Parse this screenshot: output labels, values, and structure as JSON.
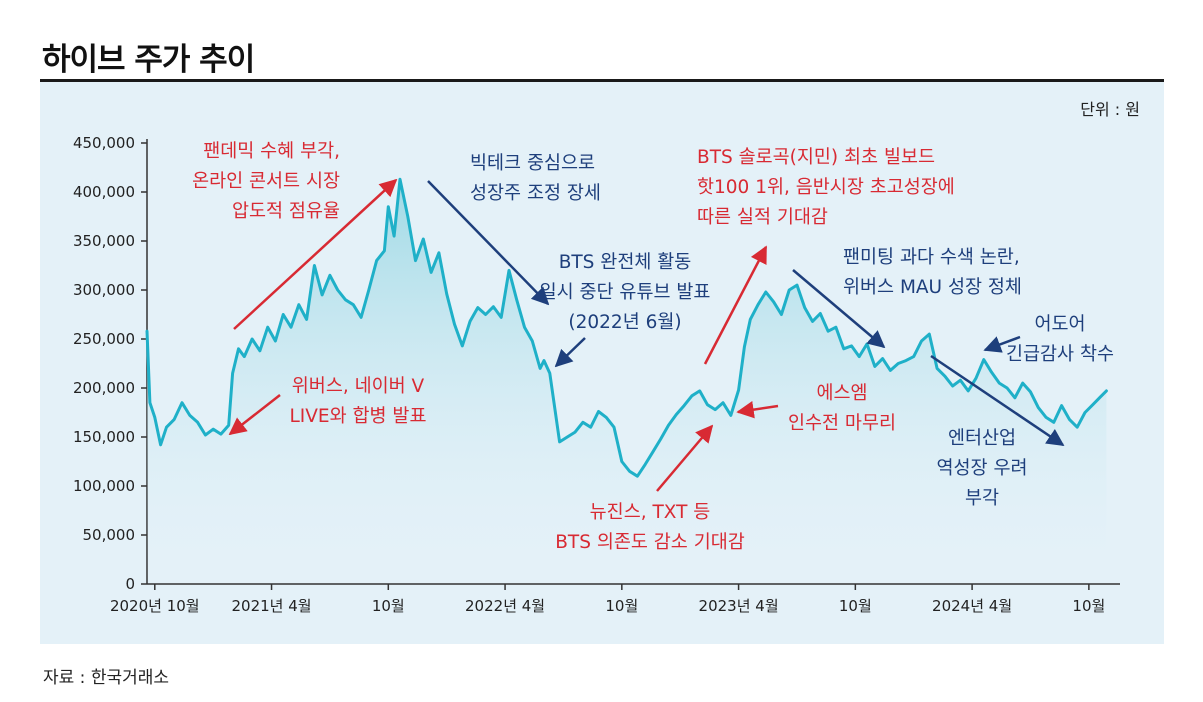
{
  "title": "하이브 주가 추이",
  "source": "자료 : 한국거래소",
  "colors": {
    "line": "#1fb0c8",
    "area_top": "#9bd8e4",
    "annotation_red": "#d82a33",
    "annotation_blue": "#1e3f7c",
    "panel_bg": "#e4f1f8"
  },
  "chart_data": {
    "type": "line",
    "title": "하이브 주가 추이",
    "unit": "단위 : 원",
    "ylim": [
      0,
      450000
    ],
    "yticks": [
      0,
      50000,
      100000,
      150000,
      200000,
      250000,
      300000,
      350000,
      400000,
      450000
    ],
    "ytick_labels": [
      "0",
      "50,000",
      "100,000",
      "150,000",
      "200,000",
      "250,000",
      "300,000",
      "350,000",
      "400,000",
      "450,000"
    ],
    "xticks": [
      {
        "label": "2020년 10월",
        "t": 0
      },
      {
        "label": "2021년 4월",
        "t": 6
      },
      {
        "label": "10월",
        "t": 12
      },
      {
        "label": "2022년 4월",
        "t": 18
      },
      {
        "label": "10월",
        "t": 24
      },
      {
        "label": "2023년 4월",
        "t": 30
      },
      {
        "label": "10월",
        "t": 36
      },
      {
        "label": "2024년 4월",
        "t": 42
      },
      {
        "label": "10월",
        "t": 48
      }
    ],
    "xlim": [
      -0.4,
      49.6
    ],
    "series": [
      {
        "name": "하이브 주가",
        "t": [
          -0.4,
          -0.25,
          0.0,
          0.3,
          0.6,
          1.0,
          1.4,
          1.8,
          2.2,
          2.6,
          3.0,
          3.4,
          3.8,
          4.0,
          4.3,
          4.6,
          5.0,
          5.4,
          5.8,
          6.2,
          6.6,
          7.0,
          7.4,
          7.8,
          8.2,
          8.6,
          9.0,
          9.4,
          9.8,
          10.2,
          10.6,
          11.0,
          11.4,
          11.8,
          12.0,
          12.3,
          12.6,
          13.0,
          13.4,
          13.8,
          14.2,
          14.6,
          15.0,
          15.4,
          15.8,
          16.2,
          16.6,
          17.0,
          17.4,
          17.8,
          18.2,
          18.6,
          19.0,
          19.4,
          19.8,
          20.0,
          20.3,
          20.8,
          21.2,
          21.6,
          22.0,
          22.4,
          22.8,
          23.2,
          23.6,
          24.0,
          24.4,
          24.8,
          25.2,
          25.6,
          26.0,
          26.4,
          26.8,
          27.2,
          27.6,
          28.0,
          28.4,
          28.8,
          29.2,
          29.6,
          30.0,
          30.3,
          30.6,
          31.0,
          31.4,
          31.8,
          32.2,
          32.6,
          33.0,
          33.4,
          33.8,
          34.2,
          34.6,
          35.0,
          35.4,
          35.8,
          36.2,
          36.6,
          37.0,
          37.4,
          37.8,
          38.2,
          38.6,
          39.0,
          39.4,
          39.8,
          40.2,
          40.6,
          41.0,
          41.4,
          41.8,
          42.2,
          42.6,
          43.0,
          43.4,
          43.8,
          44.2,
          44.6,
          45.0,
          45.4,
          45.8,
          46.2,
          46.6,
          47.0,
          47.4,
          47.8,
          48.2,
          48.6,
          48.9
        ],
        "values": [
          258000,
          185000,
          170000,
          142000,
          160000,
          168000,
          185000,
          172000,
          165000,
          152000,
          158000,
          153000,
          162000,
          215000,
          240000,
          232000,
          250000,
          238000,
          262000,
          248000,
          275000,
          262000,
          285000,
          270000,
          325000,
          295000,
          315000,
          300000,
          290000,
          285000,
          272000,
          300000,
          330000,
          340000,
          385000,
          355000,
          413000,
          375000,
          330000,
          352000,
          318000,
          338000,
          296000,
          265000,
          243000,
          268000,
          282000,
          275000,
          283000,
          272000,
          320000,
          290000,
          262000,
          248000,
          220000,
          228000,
          215000,
          145000,
          150000,
          155000,
          165000,
          160000,
          176000,
          170000,
          160000,
          125000,
          115000,
          110000,
          122000,
          135000,
          148000,
          162000,
          173000,
          182000,
          192000,
          197000,
          183000,
          178000,
          185000,
          172000,
          198000,
          242000,
          270000,
          285000,
          298000,
          288000,
          275000,
          300000,
          305000,
          282000,
          268000,
          276000,
          258000,
          262000,
          240000,
          243000,
          232000,
          245000,
          222000,
          230000,
          218000,
          225000,
          228000,
          232000,
          248000,
          255000,
          220000,
          212000,
          202000,
          208000,
          197000,
          210000,
          229000,
          216000,
          205000,
          200000,
          190000,
          205000,
          196000,
          180000,
          170000,
          165000,
          182000,
          168000,
          160000,
          175000,
          183000,
          191000,
          197000
        ]
      }
    ],
    "annotations": [
      {
        "id": "pandemic",
        "color": "red",
        "lines": [
          "팬데믹 수혜 부각,",
          "온라인 콘서트 시장",
          "압도적 점유율"
        ]
      },
      {
        "id": "bigtech",
        "color": "blue",
        "lines": [
          "빅테크 중심으로",
          "성장주 조정 장세"
        ]
      },
      {
        "id": "bts-chart",
        "color": "red",
        "lines": [
          "BTS 솔로곡(지민) 최초 빌보드",
          "핫100 1위, 음반시장 초고성장에",
          "따른 실적 기대감"
        ]
      },
      {
        "id": "bts-hiatus",
        "color": "blue",
        "lines": [
          "BTS 완전체 활동",
          "일시 중단 유튜브 발표",
          "(2022년 6월)"
        ]
      },
      {
        "id": "fanmeeting",
        "color": "blue",
        "lines": [
          "팬미팅 과다 수색 논란,",
          "위버스 MAU 성장 정체"
        ]
      },
      {
        "id": "ador",
        "color": "blue",
        "lines": [
          "어도어",
          "긴급감사 착수"
        ]
      },
      {
        "id": "weverse-vlive",
        "color": "red",
        "lines": [
          "위버스, 네이버 V",
          "LIVE와 합병 발표"
        ]
      },
      {
        "id": "sm",
        "color": "red",
        "lines": [
          "에스엠",
          "인수전 마무리"
        ]
      },
      {
        "id": "newjeans",
        "color": "red",
        "lines": [
          "뉴진스, TXT 등",
          "BTS 의존도 감소 기대감"
        ]
      },
      {
        "id": "entertainment",
        "color": "blue",
        "lines": [
          "엔터산업",
          "역성장 우려",
          "부각"
        ]
      }
    ]
  }
}
